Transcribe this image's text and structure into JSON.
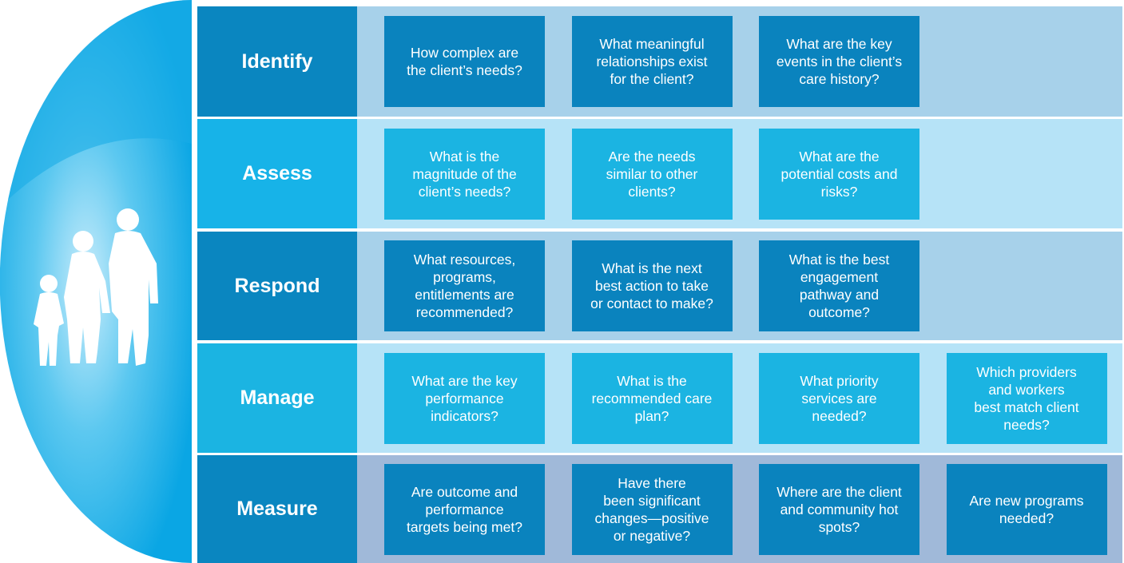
{
  "rows": [
    {
      "label": "Identify",
      "questions": [
        "How complex are\nthe client’s needs?",
        "What  meaningful\nrelationships exist\nfor the client?",
        "What are the key\nevents in the client’s\ncare history?"
      ]
    },
    {
      "label": "Assess",
      "questions": [
        "What is the\nmagnitude of the\nclient’s needs?",
        "Are the needs\nsimilar to other\nclients?",
        "What are the\npotential costs and\nrisks?"
      ]
    },
    {
      "label": "Respond",
      "questions": [
        "What resources,\nprograms,\nentitlements are\nrecommended?",
        "What is the next\nbest action to take\nor contact to make?",
        "What is the best\nengagement\npathway and\noutcome?"
      ]
    },
    {
      "label": "Manage",
      "questions": [
        "What are the key\nperformance\nindicators?",
        "What is the\nrecommended care\nplan?",
        "What priority\nservices are\nneeded?",
        "Which providers\nand workers\nbest match client\nneeds?"
      ]
    },
    {
      "label": "Measure",
      "questions": [
        "Are outcome and\nperformance\ntargets being met?",
        "Have there\nbeen significant\nchanges—positive\nor negative?",
        "Where are the client\nand community hot\nspots?",
        "Are new programs\nneeded?"
      ]
    }
  ]
}
